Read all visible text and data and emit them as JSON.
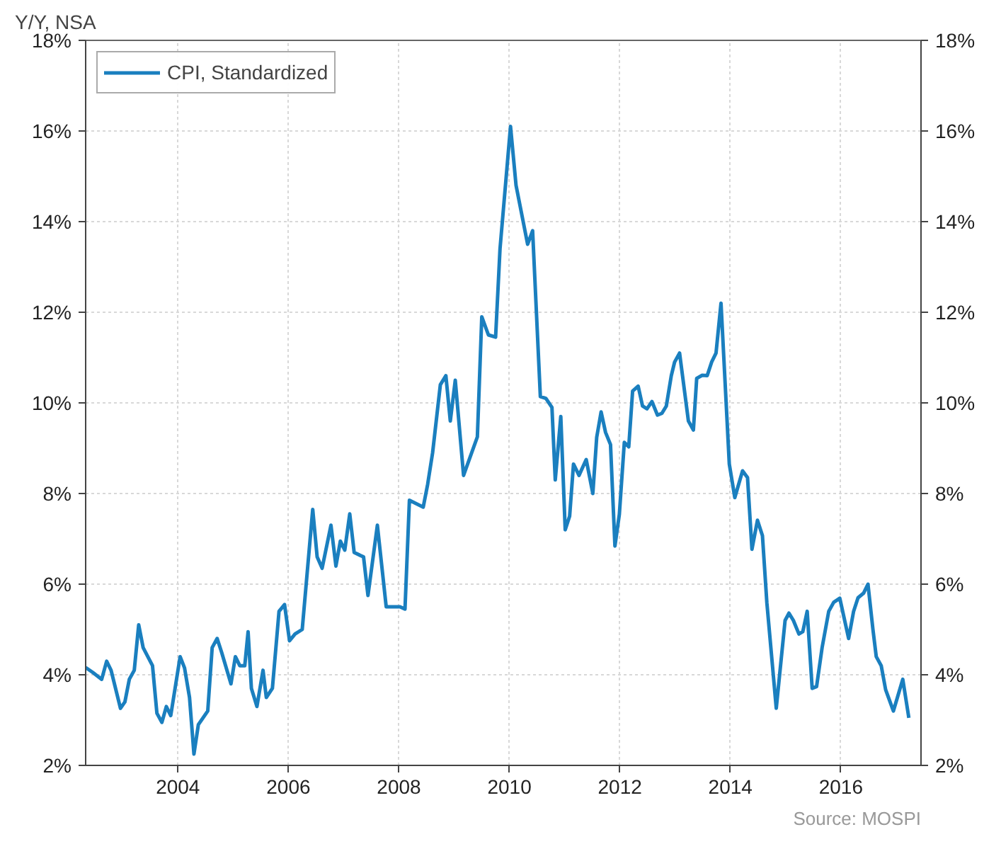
{
  "chart_data": {
    "type": "line",
    "ylabel": "Y/Y, NSA",
    "annotations": [
      "Source: MOSPI"
    ],
    "x": [
      2002.33,
      2002.46,
      2002.62,
      2002.71,
      2002.79,
      2002.96,
      2003.04,
      2003.12,
      2003.21,
      2003.29,
      2003.37,
      2003.54,
      2003.62,
      2003.71,
      2003.79,
      2003.87,
      2004.04,
      2004.12,
      2004.21,
      2004.29,
      2004.37,
      2004.54,
      2004.62,
      2004.71,
      2004.79,
      2004.96,
      2005.04,
      2005.12,
      2005.21,
      2005.27,
      2005.33,
      2005.43,
      2005.54,
      2005.6,
      2005.71,
      2005.83,
      2005.93,
      2006.02,
      2006.12,
      2006.25,
      2006.44,
      2006.52,
      2006.61,
      2006.77,
      2006.86,
      2006.94,
      2007.02,
      2007.11,
      2007.19,
      2007.36,
      2007.44,
      2007.61,
      2007.77,
      2008.02,
      2008.11,
      2008.19,
      2008.44,
      2008.52,
      2008.61,
      2008.75,
      2008.85,
      2008.93,
      2009.02,
      2009.17,
      2009.42,
      2009.5,
      2009.62,
      2009.75,
      2009.83,
      2010.02,
      2010.12,
      2010.33,
      2010.42,
      2010.56,
      2010.66,
      2010.77,
      2010.83,
      2010.93,
      2011.01,
      2011.09,
      2011.16,
      2011.26,
      2011.39,
      2011.51,
      2011.58,
      2011.66,
      2011.74,
      2011.83,
      2011.91,
      2011.99,
      2012.08,
      2012.16,
      2012.23,
      2012.33,
      2012.41,
      2012.49,
      2012.58,
      2012.68,
      2012.76,
      2012.84,
      2012.93,
      2012.99,
      2013.08,
      2013.24,
      2013.33,
      2013.39,
      2013.49,
      2013.58,
      2013.66,
      2013.74,
      2013.83,
      2013.98,
      2014.08,
      2014.22,
      2014.31,
      2014.39,
      2014.49,
      2014.58,
      2014.66,
      2014.83,
      2014.99,
      2015.06,
      2015.14,
      2015.24,
      2015.31,
      2015.39,
      2015.48,
      2015.56,
      2015.66,
      2015.78,
      2015.87,
      2015.98,
      2016.14,
      2016.23,
      2016.31,
      2016.41,
      2016.49,
      2016.58,
      2016.64,
      2016.73,
      2016.81,
      2016.95,
      2017.12,
      2017.23
    ],
    "series": [
      {
        "name": "CPI, Standardized",
        "color": "#1a7fbf",
        "values": [
          4.16,
          4.05,
          3.9,
          4.3,
          4.1,
          3.26,
          3.4,
          3.9,
          4.1,
          5.1,
          4.6,
          4.2,
          3.15,
          2.95,
          3.3,
          3.1,
          4.4,
          4.15,
          3.5,
          2.25,
          2.9,
          3.2,
          4.6,
          4.8,
          4.5,
          3.8,
          4.4,
          4.2,
          4.2,
          4.95,
          3.7,
          3.3,
          4.1,
          3.5,
          3.7,
          5.4,
          5.55,
          4.75,
          4.9,
          5.0,
          7.65,
          6.6,
          6.35,
          7.3,
          6.4,
          6.95,
          6.75,
          7.55,
          6.7,
          6.6,
          5.75,
          7.3,
          5.5,
          5.5,
          5.45,
          7.85,
          7.7,
          8.2,
          8.9,
          10.4,
          10.6,
          9.6,
          10.5,
          8.4,
          9.25,
          11.9,
          11.5,
          11.45,
          13.4,
          16.1,
          14.8,
          13.5,
          13.8,
          10.14,
          10.1,
          9.9,
          8.3,
          9.7,
          7.2,
          7.5,
          8.65,
          8.4,
          8.75,
          8.0,
          9.24,
          9.8,
          9.35,
          9.08,
          6.84,
          7.54,
          9.13,
          9.03,
          10.26,
          10.37,
          9.93,
          9.87,
          10.03,
          9.73,
          9.77,
          9.93,
          10.6,
          10.9,
          11.1,
          9.6,
          9.4,
          10.54,
          10.61,
          10.6,
          10.9,
          11.1,
          12.2,
          8.65,
          7.91,
          8.5,
          8.35,
          6.77,
          7.41,
          7.07,
          5.59,
          3.26,
          5.2,
          5.36,
          5.2,
          4.9,
          4.95,
          5.4,
          3.7,
          3.74,
          4.6,
          5.4,
          5.6,
          5.69,
          4.8,
          5.4,
          5.7,
          5.8,
          6.0,
          5.0,
          4.4,
          4.2,
          3.67,
          3.2,
          3.9,
          3.05
        ]
      }
    ],
    "xlim": [
      2002.33,
      2017.45
    ],
    "xticks": [
      2004,
      2006,
      2008,
      2010,
      2012,
      2014,
      2016
    ],
    "ylim": [
      2,
      18
    ],
    "yticks": [
      {
        "value": 2,
        "label": "2%"
      },
      {
        "value": 4,
        "label": "4%"
      },
      {
        "value": 6,
        "label": "6%"
      },
      {
        "value": 8,
        "label": "8%"
      },
      {
        "value": 10,
        "label": "10%"
      },
      {
        "value": 12,
        "label": "12%"
      },
      {
        "value": 14,
        "label": "14%"
      },
      {
        "value": 16,
        "label": "16%"
      },
      {
        "value": 18,
        "label": "18%"
      }
    ],
    "y2lim": [
      2,
      18
    ],
    "y2ticks": [
      {
        "value": 2,
        "label": "2%"
      },
      {
        "value": 4,
        "label": "4%"
      },
      {
        "value": 6,
        "label": "6%"
      },
      {
        "value": 8,
        "label": "8%"
      },
      {
        "value": 10,
        "label": "10%"
      },
      {
        "value": 12,
        "label": "12%"
      },
      {
        "value": 14,
        "label": "14%"
      },
      {
        "value": 16,
        "label": "16%"
      },
      {
        "value": 18,
        "label": "18%"
      }
    ],
    "grid": true,
    "legend": "top left",
    "marker": "none",
    "line_style": "solid"
  }
}
